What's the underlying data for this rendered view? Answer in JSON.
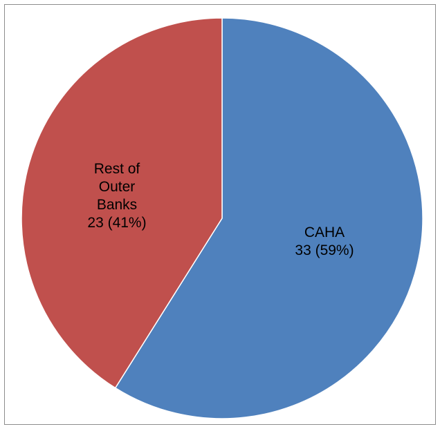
{
  "chart_data": {
    "type": "pie",
    "title": "",
    "slices": [
      {
        "label_lines": [
          "CAHA",
          "33 (59%)"
        ],
        "name": "CAHA",
        "value": 33,
        "percent": 59,
        "color": "#4f81bd"
      },
      {
        "label_lines": [
          "Rest of",
          "Outer",
          "Banks",
          "23 (41%)"
        ],
        "name": "Rest of Outer Banks",
        "value": 23,
        "percent": 41,
        "color": "#c0504d"
      }
    ],
    "start_angle_deg": 0,
    "direction": "clockwise",
    "legend": "none"
  }
}
